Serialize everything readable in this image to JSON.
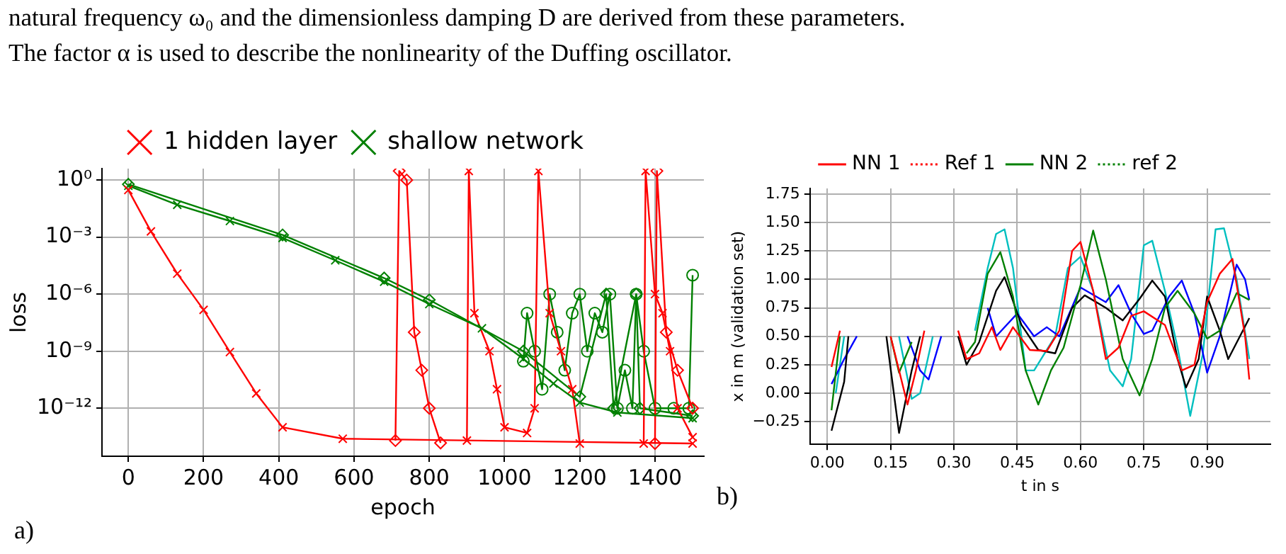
{
  "chart_data": [
    {
      "type": "line",
      "title": "a)",
      "annotations": [
        "natural frequency ω₀ and the dimensionless damping D are derived from these parameters.",
        "The factor α is used to describe the nonlinearity of the Duffing oscillator."
      ],
      "xlabel": "epoch",
      "ylabel": "loss",
      "log": "y",
      "grid": true,
      "legend": "top",
      "xlim": [
        -70,
        1530
      ],
      "xticks": [
        0,
        200,
        400,
        600,
        800,
        1000,
        1200,
        1400
      ],
      "ylim": [
        3e-15,
        4
      ],
      "yticks": [
        {
          "value": 1,
          "label": "10⁰"
        },
        {
          "value": 0.001,
          "label": "10⁻³"
        },
        {
          "value": 1e-06,
          "label": "10⁻⁶"
        },
        {
          "value": 1e-09,
          "label": "10⁻⁹"
        },
        {
          "value": 1e-12,
          "label": "10⁻¹²"
        }
      ],
      "series": [
        {
          "name": "1 hidden layer",
          "color": "#ff0000",
          "marker": "cross",
          "x": [
            0,
            60,
            130,
            200,
            270,
            340,
            410,
            570,
            1500
          ],
          "values": [
            0.3,
            0.002,
            1.2e-05,
            1.5e-07,
            9e-10,
            6e-12,
            1e-13,
            2.5e-14,
            1.4e-14
          ]
        },
        {
          "name": "shallow network",
          "color": "#008000",
          "marker": "cross",
          "x": [
            0,
            130,
            270,
            410,
            550,
            680,
            800,
            940,
            1050,
            1130,
            1200,
            1300,
            1500
          ],
          "values": [
            0.5,
            0.05,
            0.007,
            0.0009,
            6e-05,
            4.5e-06,
            3e-07,
            1.6e-08,
            4e-10,
            2e-11,
            2e-12,
            6e-13,
            3e-13
          ]
        },
        {
          "color": "#ff0000",
          "marker": "diamond",
          "x": [
            710,
            720,
            740,
            760,
            780,
            800,
            830
          ],
          "values": [
            2e-14,
            3,
            1,
            1e-08,
            1e-10,
            1e-12,
            1.5e-14
          ]
        },
        {
          "color": "#ff0000",
          "marker": "cross",
          "x": [
            900,
            905,
            920,
            960,
            980,
            1000,
            1060,
            1080,
            1090,
            1120,
            1150,
            1180,
            1200
          ],
          "values": [
            2e-14,
            3,
            1e-07,
            1e-09,
            1e-11,
            1e-13,
            5e-14,
            1e-12,
            3,
            1e-07,
            1e-09,
            1e-11,
            1.4e-14
          ]
        },
        {
          "color": "#ff0000",
          "marker": "cross",
          "x": [
            1370,
            1375,
            1400,
            1420,
            1440,
            1460,
            1500
          ],
          "values": [
            1.4e-14,
            3,
            1e-06,
            1e-07,
            1e-09,
            1e-12,
            3e-14
          ]
        },
        {
          "color": "#ff0000",
          "marker": "diamond",
          "x": [
            1400,
            1405,
            1430,
            1460,
            1500
          ],
          "values": [
            1.4e-14,
            3,
            1e-08,
            1e-10,
            1e-12
          ]
        },
        {
          "color": "#008000",
          "marker": "diamond",
          "x": [
            0,
            410,
            680,
            800,
            1050,
            1200,
            1270,
            1290,
            1350,
            1360,
            1500
          ],
          "values": [
            0.6,
            0.0013,
            7e-06,
            5e-07,
            1e-09,
            4e-12,
            1e-06,
            1e-12,
            1e-06,
            1e-12,
            4e-13
          ]
        },
        {
          "color": "#008000",
          "marker": "circle",
          "x": [
            1050,
            1060,
            1080,
            1100,
            1120,
            1140,
            1160,
            1180,
            1200,
            1220,
            1240,
            1260,
            1280,
            1300,
            1320,
            1340,
            1350,
            1370,
            1400,
            1450,
            1490,
            1500
          ],
          "values": [
            3e-10,
            1e-07,
            1e-09,
            1e-11,
            1e-06,
            1e-08,
            1e-10,
            1e-07,
            1e-06,
            1e-09,
            1e-07,
            1e-08,
            1e-06,
            1e-12,
            1e-10,
            1e-12,
            1e-06,
            1e-09,
            1e-12,
            1e-12,
            1e-12,
            1e-05
          ]
        }
      ]
    },
    {
      "type": "line",
      "title": "b)",
      "xlabel": "t in s",
      "ylabel": "x in m (validation set)",
      "grid": true,
      "legend": "top",
      "xlim": [
        -0.041,
        1.05
      ],
      "ylim": [
        -0.45,
        1.8
      ],
      "xticks": [
        {
          "value": 0,
          "label": "0.00"
        },
        {
          "value": 0.15,
          "label": "0.15"
        },
        {
          "value": 0.3,
          "label": "0.30"
        },
        {
          "value": 0.45,
          "label": "0.45"
        },
        {
          "value": 0.6,
          "label": "0.60"
        },
        {
          "value": 0.75,
          "label": "0.75"
        },
        {
          "value": 0.9,
          "label": "0.90"
        }
      ],
      "yticks": [
        {
          "value": -0.25,
          "label": "−0.25"
        },
        {
          "value": 0,
          "label": "0.00"
        },
        {
          "value": 0.25,
          "label": "0.25"
        },
        {
          "value": 0.5,
          "label": "0.50"
        },
        {
          "value": 0.75,
          "label": "0.75"
        },
        {
          "value": 1,
          "label": "1.00"
        },
        {
          "value": 1.25,
          "label": "1.25"
        },
        {
          "value": 1.5,
          "label": "1.50"
        },
        {
          "value": 1.75,
          "label": "1.75"
        }
      ],
      "series": [
        {
          "name": "NN 1",
          "color": "#ff0000",
          "line_style": "solid",
          "x": [
            0.01,
            0.03,
            0.035,
            0.15,
            0.19,
            0.21,
            0.23,
            0.235,
            0.31,
            0.33,
            0.36,
            0.39,
            0.41,
            0.44,
            0.48,
            0.52,
            0.55,
            0.58,
            0.6,
            0.63,
            0.66,
            0.69,
            0.72,
            0.75,
            0.8,
            0.84,
            0.87,
            0.9,
            0.93,
            0.96,
            0.99,
            1.0
          ],
          "values": [
            0.23,
            0.55,
            null,
            0.5,
            -0.1,
            0.2,
            0.55,
            null,
            0.55,
            0.3,
            0.35,
            0.58,
            0.38,
            0.58,
            0.38,
            0.37,
            0.55,
            1.25,
            1.33,
            0.9,
            0.3,
            0.4,
            0.68,
            0.72,
            0.6,
            0.2,
            0.25,
            0.8,
            1.05,
            1.18,
            0.5,
            0.12
          ]
        },
        {
          "name": "Ref 1",
          "color": "#ff0000",
          "line_style": "dotted"
        },
        {
          "name": "NN 2",
          "color": "#008000",
          "line_style": "solid",
          "x": [
            0.01,
            0.03,
            0.035,
            0.15,
            0.17,
            0.2,
            0.205,
            0.33,
            0.35,
            0.38,
            0.41,
            0.44,
            0.47,
            0.5,
            0.53,
            0.56,
            0.6,
            0.63,
            0.66,
            0.7,
            0.74,
            0.77,
            0.8,
            0.83,
            0.87,
            0.9,
            0.93,
            0.97,
            1.0
          ],
          "values": [
            -0.15,
            0.5,
            null,
            0.5,
            0.18,
            0.45,
            null,
            0.35,
            0.45,
            1.05,
            1.24,
            0.85,
            0.2,
            -0.1,
            0.2,
            0.4,
            0.95,
            1.43,
            1.0,
            0.3,
            -0.02,
            0.3,
            0.75,
            0.9,
            0.7,
            0.48,
            0.55,
            0.88,
            0.82
          ]
        },
        {
          "name": "ref 2",
          "color": "#008000",
          "line_style": "dotted"
        },
        {
          "color": "#000000",
          "line_style": "solid",
          "x": [
            0.01,
            0.04,
            0.05,
            0.055,
            0.14,
            0.17,
            0.2,
            0.22,
            0.225,
            0.31,
            0.33,
            0.36,
            0.4,
            0.42,
            0.46,
            0.5,
            0.54,
            0.58,
            0.61,
            0.66,
            0.7,
            0.74,
            0.77,
            0.8,
            0.83,
            0.85,
            0.88,
            0.9,
            0.93,
            0.95,
            1.0
          ],
          "values": [
            -0.33,
            0.1,
            0.5,
            null,
            0.5,
            -0.35,
            0.2,
            0.5,
            null,
            0.5,
            0.25,
            0.45,
            0.9,
            1.02,
            0.6,
            0.38,
            0.35,
            0.75,
            0.86,
            0.75,
            0.64,
            0.83,
            0.99,
            0.85,
            0.3,
            0.05,
            0.3,
            0.85,
            0.55,
            0.3,
            0.66
          ]
        },
        {
          "color": "#0000ff",
          "line_style": "solid",
          "x": [
            0.01,
            0.04,
            0.07,
            0.075,
            0.19,
            0.22,
            0.24,
            0.27,
            0.275,
            0.38,
            0.4,
            0.45,
            0.49,
            0.52,
            0.55,
            0.6,
            0.66,
            0.69,
            0.72,
            0.75,
            0.77,
            0.81,
            0.84,
            0.87,
            0.9,
            0.93,
            0.97,
            0.99,
            1.0
          ],
          "values": [
            0.08,
            0.3,
            0.5,
            null,
            0.5,
            0.2,
            0.12,
            0.5,
            null,
            0.75,
            0.5,
            0.7,
            0.5,
            0.58,
            0.5,
            0.93,
            0.8,
            0.95,
            0.7,
            0.52,
            0.55,
            0.85,
            0.99,
            0.7,
            0.18,
            0.5,
            1.13,
            1.0,
            0.82
          ]
        },
        {
          "color": "#00bfbf",
          "line_style": "solid",
          "x": [
            0.02,
            0.04,
            0.045,
            0.17,
            0.2,
            0.22,
            0.25,
            0.255,
            0.35,
            0.38,
            0.4,
            0.42,
            0.44,
            0.47,
            0.49,
            0.54,
            0.57,
            0.6,
            0.63,
            0.67,
            0.7,
            0.72,
            0.75,
            0.77,
            0.8,
            0.83,
            0.86,
            0.89,
            0.92,
            0.94,
            0.97,
            1.0
          ],
          "values": [
            0.0,
            0.5,
            null,
            0.5,
            -0.05,
            0.0,
            0.5,
            null,
            0.55,
            1.1,
            1.4,
            1.44,
            1.1,
            0.2,
            0.2,
            0.5,
            1.1,
            1.2,
            0.9,
            0.2,
            0.06,
            0.3,
            1.3,
            1.34,
            0.9,
            0.4,
            -0.2,
            0.35,
            1.44,
            1.45,
            1.0,
            0.3
          ]
        }
      ]
    }
  ]
}
